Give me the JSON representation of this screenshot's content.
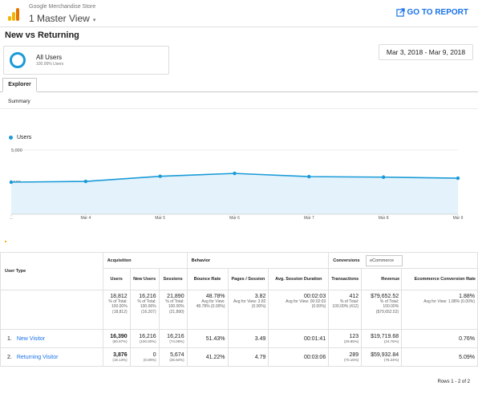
{
  "header": {
    "store": "Google Merchandise Store",
    "view": "1 Master View",
    "go_to_report": "GO TO REPORT"
  },
  "report": {
    "title": "New vs Returning",
    "segment": {
      "name": "All Users",
      "sub": "100.00% Users"
    },
    "date_range": "Mar 3, 2018 - Mar 9, 2018",
    "tab": "Explorer",
    "subtab": "Summary"
  },
  "chart_data": {
    "type": "line",
    "series": [
      {
        "name": "Users",
        "values": [
          2500,
          2560,
          2960,
          3180,
          2930,
          2890,
          2810
        ]
      }
    ],
    "x": [
      "...",
      "Mar 4",
      "Mar 5",
      "Mar 6",
      "Mar 7",
      "Mar 8",
      "Mar 9"
    ],
    "ylim": [
      0,
      5000
    ],
    "yticks": [
      "5,000",
      "2,500"
    ],
    "grid": true,
    "colors": {
      "line": "#1a9bd7",
      "fill": "#e3f2fb"
    }
  },
  "table": {
    "user_type_label": "User Type",
    "groups": {
      "acquisition": "Acquisition",
      "behavior": "Behavior",
      "conversions": "Conversions",
      "conversion_select": "eCommerce"
    },
    "columns": [
      "Users",
      "New Users",
      "Sessions",
      "Bounce Rate",
      "Pages / Session",
      "Avg. Session Duration",
      "Transactions",
      "Revenue",
      "Ecommerce Conversion Rate"
    ],
    "totals": [
      {
        "value": "18,812",
        "sub": "% of Total: 100.00% (18,812)"
      },
      {
        "value": "16,216",
        "sub": "% of Total: 100.06% (16,207)"
      },
      {
        "value": "21,890",
        "sub": "% of Total: 100.00% (21,890)"
      },
      {
        "value": "48.78%",
        "sub": "Avg for View: 48.78% (0.00%)"
      },
      {
        "value": "3.82",
        "sub": "Avg for View: 3.82 (0.00%)"
      },
      {
        "value": "00:02:03",
        "sub": "Avg for View: 00:02:03 (0.00%)"
      },
      {
        "value": "412",
        "sub": "% of Total: 100.00% (412)"
      },
      {
        "value": "$79,652.52",
        "sub": "% of Total: 100.00% ($79,652.52)"
      },
      {
        "value": "1.88%",
        "sub": "Avg for View: 1.88% (0.00%)"
      }
    ],
    "rows": [
      {
        "idx": "1.",
        "name": "New Visitor",
        "users": "16,390",
        "users_pct": "(80.87%)",
        "new_users": "16,216",
        "new_users_pct": "(100.00%)",
        "sessions": "16,216",
        "sessions_pct": "(74.08%)",
        "bounce": "51.43%",
        "pages": "3.49",
        "duration": "00:01:41",
        "transactions": "123",
        "transactions_pct": "(29.85%)",
        "revenue": "$19,719.68",
        "revenue_pct": "(24.76%)",
        "conv_rate": "0.76%"
      },
      {
        "idx": "2.",
        "name": "Returning Visitor",
        "users": "3,876",
        "users_pct": "(19.13%)",
        "new_users": "0",
        "new_users_pct": "(0.00%)",
        "sessions": "5,674",
        "sessions_pct": "(25.92%)",
        "bounce": "41.22%",
        "pages": "4.79",
        "duration": "00:03:06",
        "transactions": "289",
        "transactions_pct": "(70.15%)",
        "revenue": "$59,932.84",
        "revenue_pct": "(75.24%)",
        "conv_rate": "5.09%"
      }
    ],
    "rows_info": "Rows 1 - 2 of 2"
  }
}
